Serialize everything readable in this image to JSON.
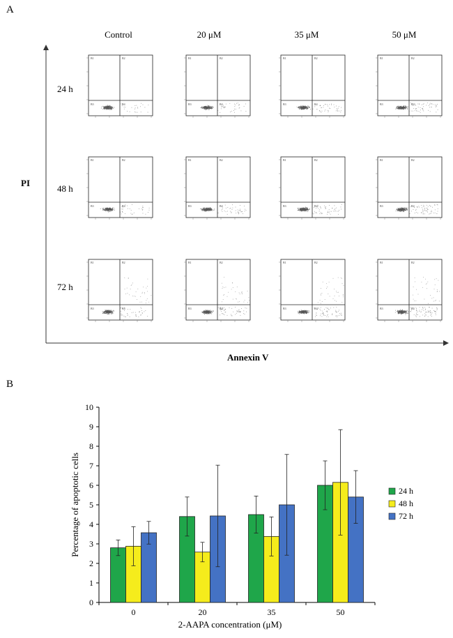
{
  "panel_a": {
    "label": "A",
    "columns": [
      "Control",
      "20 μM",
      "35 μM",
      "50 μM"
    ],
    "rows": [
      "24 h",
      "48 h",
      "72 h"
    ],
    "y_axis_title": "PI",
    "x_axis_title": "Annexin V",
    "quadrant_labels": [
      "B1",
      "B2",
      "B3",
      "B4"
    ]
  },
  "panel_b": {
    "label": "B",
    "chart_data": {
      "type": "bar",
      "title": "",
      "xlabel": "2-AAPA concentration (μM)",
      "ylabel": "Percentage of apoptotic cells",
      "categories": [
        "0",
        "20",
        "35",
        "50"
      ],
      "ylim": [
        0,
        10
      ],
      "yticks": [
        "0",
        "1",
        "2",
        "3",
        "4",
        "5",
        "6",
        "7",
        "8",
        "9",
        "10"
      ],
      "series": [
        {
          "name": "24 h",
          "color": "#1fa64a",
          "values": [
            2.8,
            4.4,
            4.5,
            6.0
          ],
          "errors": [
            0.4,
            1.0,
            0.95,
            1.25
          ]
        },
        {
          "name": "48 h",
          "color": "#f5ec1c",
          "values": [
            2.88,
            2.58,
            3.38,
            6.15
          ],
          "errors": [
            1.0,
            0.5,
            1.0,
            2.7
          ]
        },
        {
          "name": "72 h",
          "color": "#4472c4",
          "values": [
            3.57,
            4.43,
            5.0,
            5.4
          ],
          "errors": [
            0.58,
            2.6,
            2.58,
            1.35
          ]
        }
      ],
      "legend_position": "right"
    }
  }
}
